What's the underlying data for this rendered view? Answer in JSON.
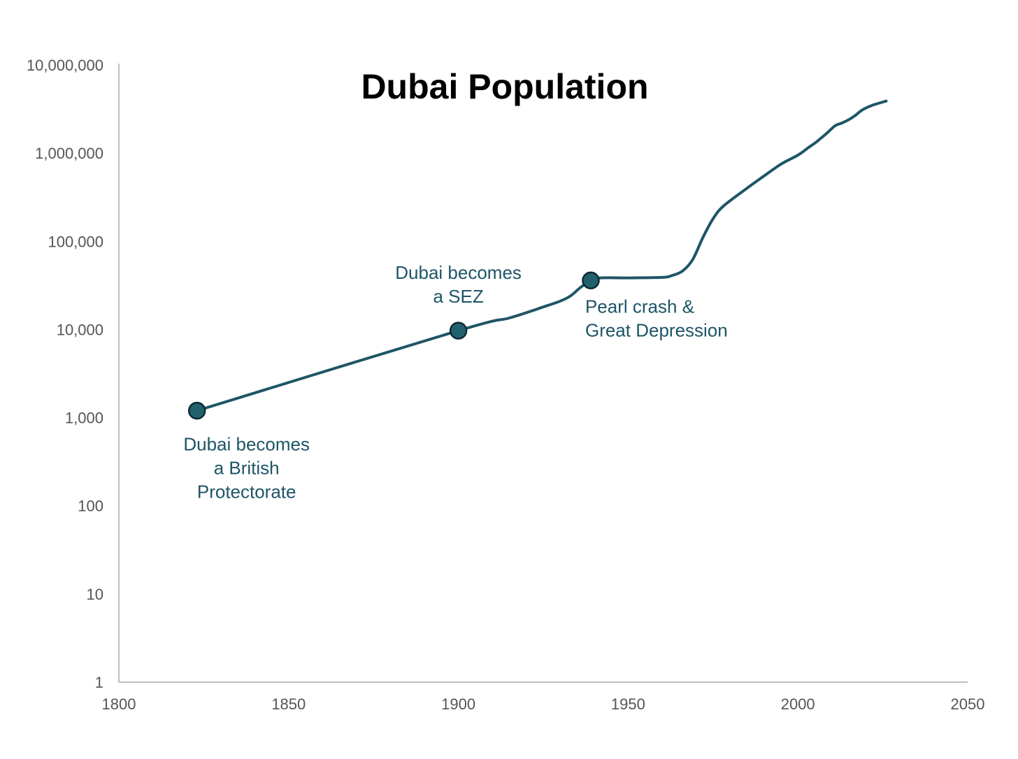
{
  "chart_data": {
    "type": "line",
    "title": "Dubai Population",
    "xlabel": "",
    "ylabel": "",
    "x_scale": "linear",
    "y_scale": "log",
    "xlim": [
      1800,
      2050
    ],
    "ylim": [
      1,
      10000000
    ],
    "x_ticks": [
      "1800",
      "1850",
      "1900",
      "1950",
      "2000",
      "2050"
    ],
    "y_ticks": [
      "1",
      "10",
      "100",
      "1,000",
      "10,000",
      "100,000",
      "1,000,000",
      "10,000,000"
    ],
    "grid": false,
    "colors": {
      "line": "#1e5566",
      "marker": "#23606e",
      "marker_stroke": "#0d2a33",
      "text": "#1e5566",
      "axis": "#aaaaaa"
    },
    "series": [
      {
        "x": [
          1823,
          1900,
          1915,
          1925,
          1930,
          1933,
          1936,
          1939,
          1942,
          1950,
          1960,
          1963,
          1966,
          1969,
          1972,
          1975,
          1978,
          1985,
          1990,
          1995,
          2000,
          2003,
          2005,
          2007,
          2009,
          2011,
          2013,
          2015,
          2017,
          2019,
          2022,
          2026
        ],
        "y": [
          1200,
          9700,
          13500,
          18000,
          21000,
          24000,
          30000,
          36000,
          38500,
          38500,
          39000,
          41000,
          46000,
          62000,
          110000,
          180000,
          250000,
          400000,
          550000,
          750000,
          950000,
          1150000,
          1300000,
          1500000,
          1750000,
          2050000,
          2200000,
          2400000,
          2700000,
          3100000,
          3500000,
          3900000
        ]
      }
    ],
    "annotations": [
      {
        "x": 1823,
        "y": 1200,
        "lines": [
          "Dubai becomes",
          "a British",
          "Protectorate"
        ],
        "placement": "below"
      },
      {
        "x": 1900,
        "y": 9700,
        "lines": [
          "Dubai becomes",
          "a SEZ"
        ],
        "placement": "above"
      },
      {
        "x": 1939,
        "y": 36000,
        "lines": [
          "Pearl crash &",
          "Great Depression"
        ],
        "placement": "below-right"
      }
    ]
  }
}
